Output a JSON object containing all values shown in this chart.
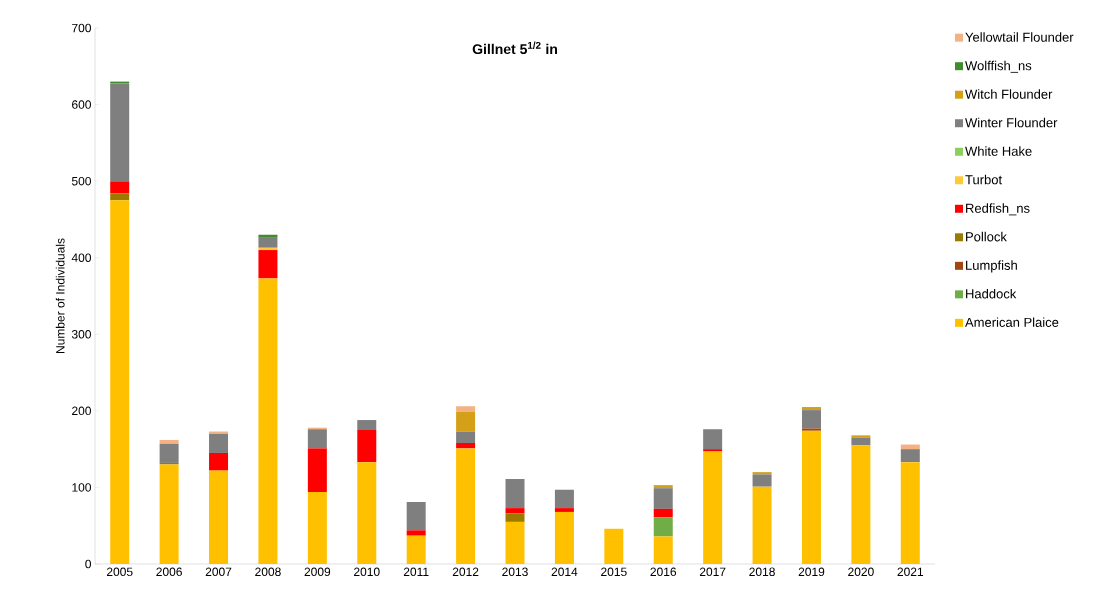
{
  "chart_data": {
    "type": "bar",
    "stacked": true,
    "title": "Gillnet 5$^{1/2}$ in",
    "ylabel": "Number of Individuals",
    "categories": [
      "2005",
      "2006",
      "2007",
      "2008",
      "2009",
      "2010",
      "2011",
      "2012",
      "2013",
      "2014",
      "2015",
      "2016",
      "2017",
      "2018",
      "2019",
      "2020",
      "2021"
    ],
    "ylim": [
      0,
      700
    ],
    "yticks": [
      0,
      100,
      200,
      300,
      400,
      500,
      600,
      700
    ],
    "legend": "right",
    "series": [
      {
        "name": "American Plaice",
        "color": "#ffc000",
        "values": [
          475,
          130,
          122,
          373,
          94,
          133,
          37,
          151,
          55,
          68,
          46,
          36,
          147,
          101,
          174,
          155,
          133
        ]
      },
      {
        "name": "Haddock",
        "color": "#70ad47",
        "values": [
          0,
          0,
          0,
          0,
          0,
          0,
          0,
          0,
          0,
          0,
          0,
          25,
          0,
          0,
          0,
          0,
          0
        ]
      },
      {
        "name": "Lumpfish",
        "color": "#a0480f",
        "values": [
          0,
          0,
          0,
          0,
          0,
          0,
          0,
          0,
          0,
          0,
          0,
          0,
          0,
          0,
          3,
          0,
          0
        ]
      },
      {
        "name": "Pollock",
        "color": "#9c7a00",
        "values": [
          9,
          2,
          0,
          0,
          0,
          0,
          0,
          0,
          11,
          0,
          0,
          0,
          0,
          0,
          0,
          0,
          0
        ]
      },
      {
        "name": "Redfish_ns",
        "color": "#ff0000",
        "values": [
          15,
          0,
          23,
          37,
          57,
          42,
          7,
          7,
          7,
          5,
          0,
          11,
          3,
          0,
          0,
          0,
          0
        ]
      },
      {
        "name": "Turbot",
        "color": "#ffc93c",
        "values": [
          0,
          0,
          0,
          3,
          0,
          0,
          0,
          0,
          0,
          0,
          0,
          0,
          0,
          0,
          0,
          0,
          0
        ]
      },
      {
        "name": "White Hake",
        "color": "#8fce5a",
        "values": [
          0,
          0,
          0,
          0,
          0,
          0,
          0,
          0,
          0,
          0,
          0,
          0,
          0,
          0,
          0,
          0,
          0
        ]
      },
      {
        "name": "Winter Flounder",
        "color": "#7f7f7f",
        "values": [
          129,
          25,
          25,
          13,
          25,
          13,
          37,
          15,
          38,
          24,
          0,
          27,
          26,
          16,
          24,
          10,
          17
        ]
      },
      {
        "name": "Witch Flounder",
        "color": "#d4a017",
        "values": [
          0,
          0,
          0,
          0,
          0,
          0,
          0,
          26,
          0,
          0,
          0,
          4,
          0,
          3,
          4,
          3,
          0
        ]
      },
      {
        "name": "Wolffish_ns",
        "color": "#3e8f2c",
        "values": [
          2,
          0,
          0,
          4,
          0,
          0,
          0,
          0,
          0,
          0,
          0,
          0,
          0,
          0,
          0,
          0,
          0
        ]
      },
      {
        "name": "Yellowtail Flounder",
        "color": "#f4b183",
        "values": [
          0,
          5,
          3,
          0,
          2,
          0,
          0,
          7,
          0,
          0,
          0,
          0,
          0,
          0,
          0,
          0,
          6
        ]
      }
    ]
  }
}
